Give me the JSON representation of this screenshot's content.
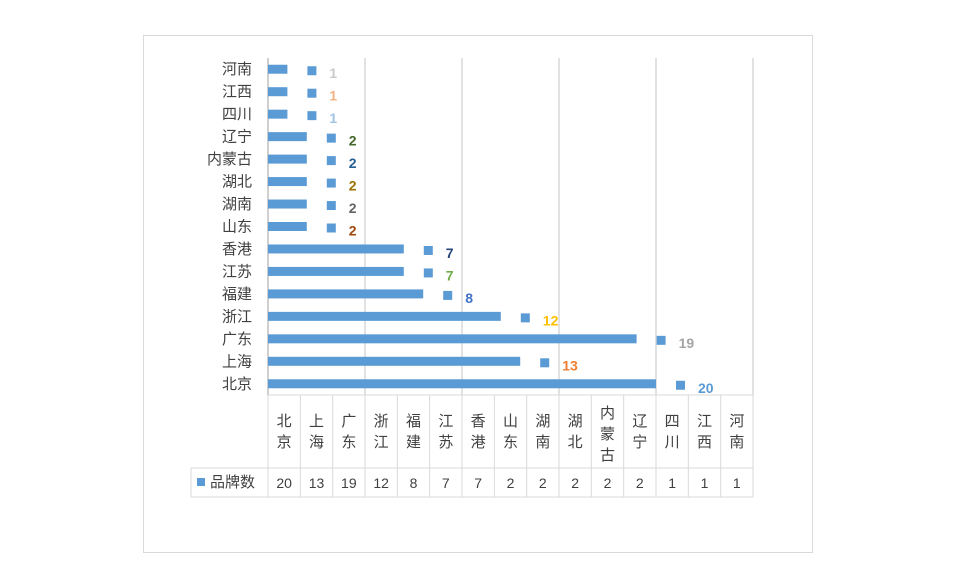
{
  "chart_data": {
    "type": "bar",
    "orientation": "horizontal",
    "title": "",
    "xlabel": "",
    "ylabel": "",
    "xlim": [
      0,
      25
    ],
    "grid": true,
    "legend": "data-table",
    "categories": [
      "北京",
      "上海",
      "广东",
      "浙江",
      "福建",
      "江苏",
      "香港",
      "山东",
      "湖南",
      "湖北",
      "内蒙古",
      "辽宁",
      "四川",
      "江西",
      "河南"
    ],
    "series": [
      {
        "name": "品牌数",
        "color": "#5b9bd5",
        "values": [
          20,
          13,
          19,
          12,
          8,
          7,
          7,
          2,
          2,
          2,
          2,
          2,
          1,
          1,
          1
        ]
      }
    ],
    "label_colors": [
      "#5b9bd5",
      "#ed7d31",
      "#a5a5a5",
      "#ffc000",
      "#4472c4",
      "#70ad47",
      "#264478",
      "#9e480e",
      "#636363",
      "#997300",
      "#255e91",
      "#43682b",
      "#9dc3e6",
      "#f4b183",
      "#c9c9c9"
    ]
  }
}
